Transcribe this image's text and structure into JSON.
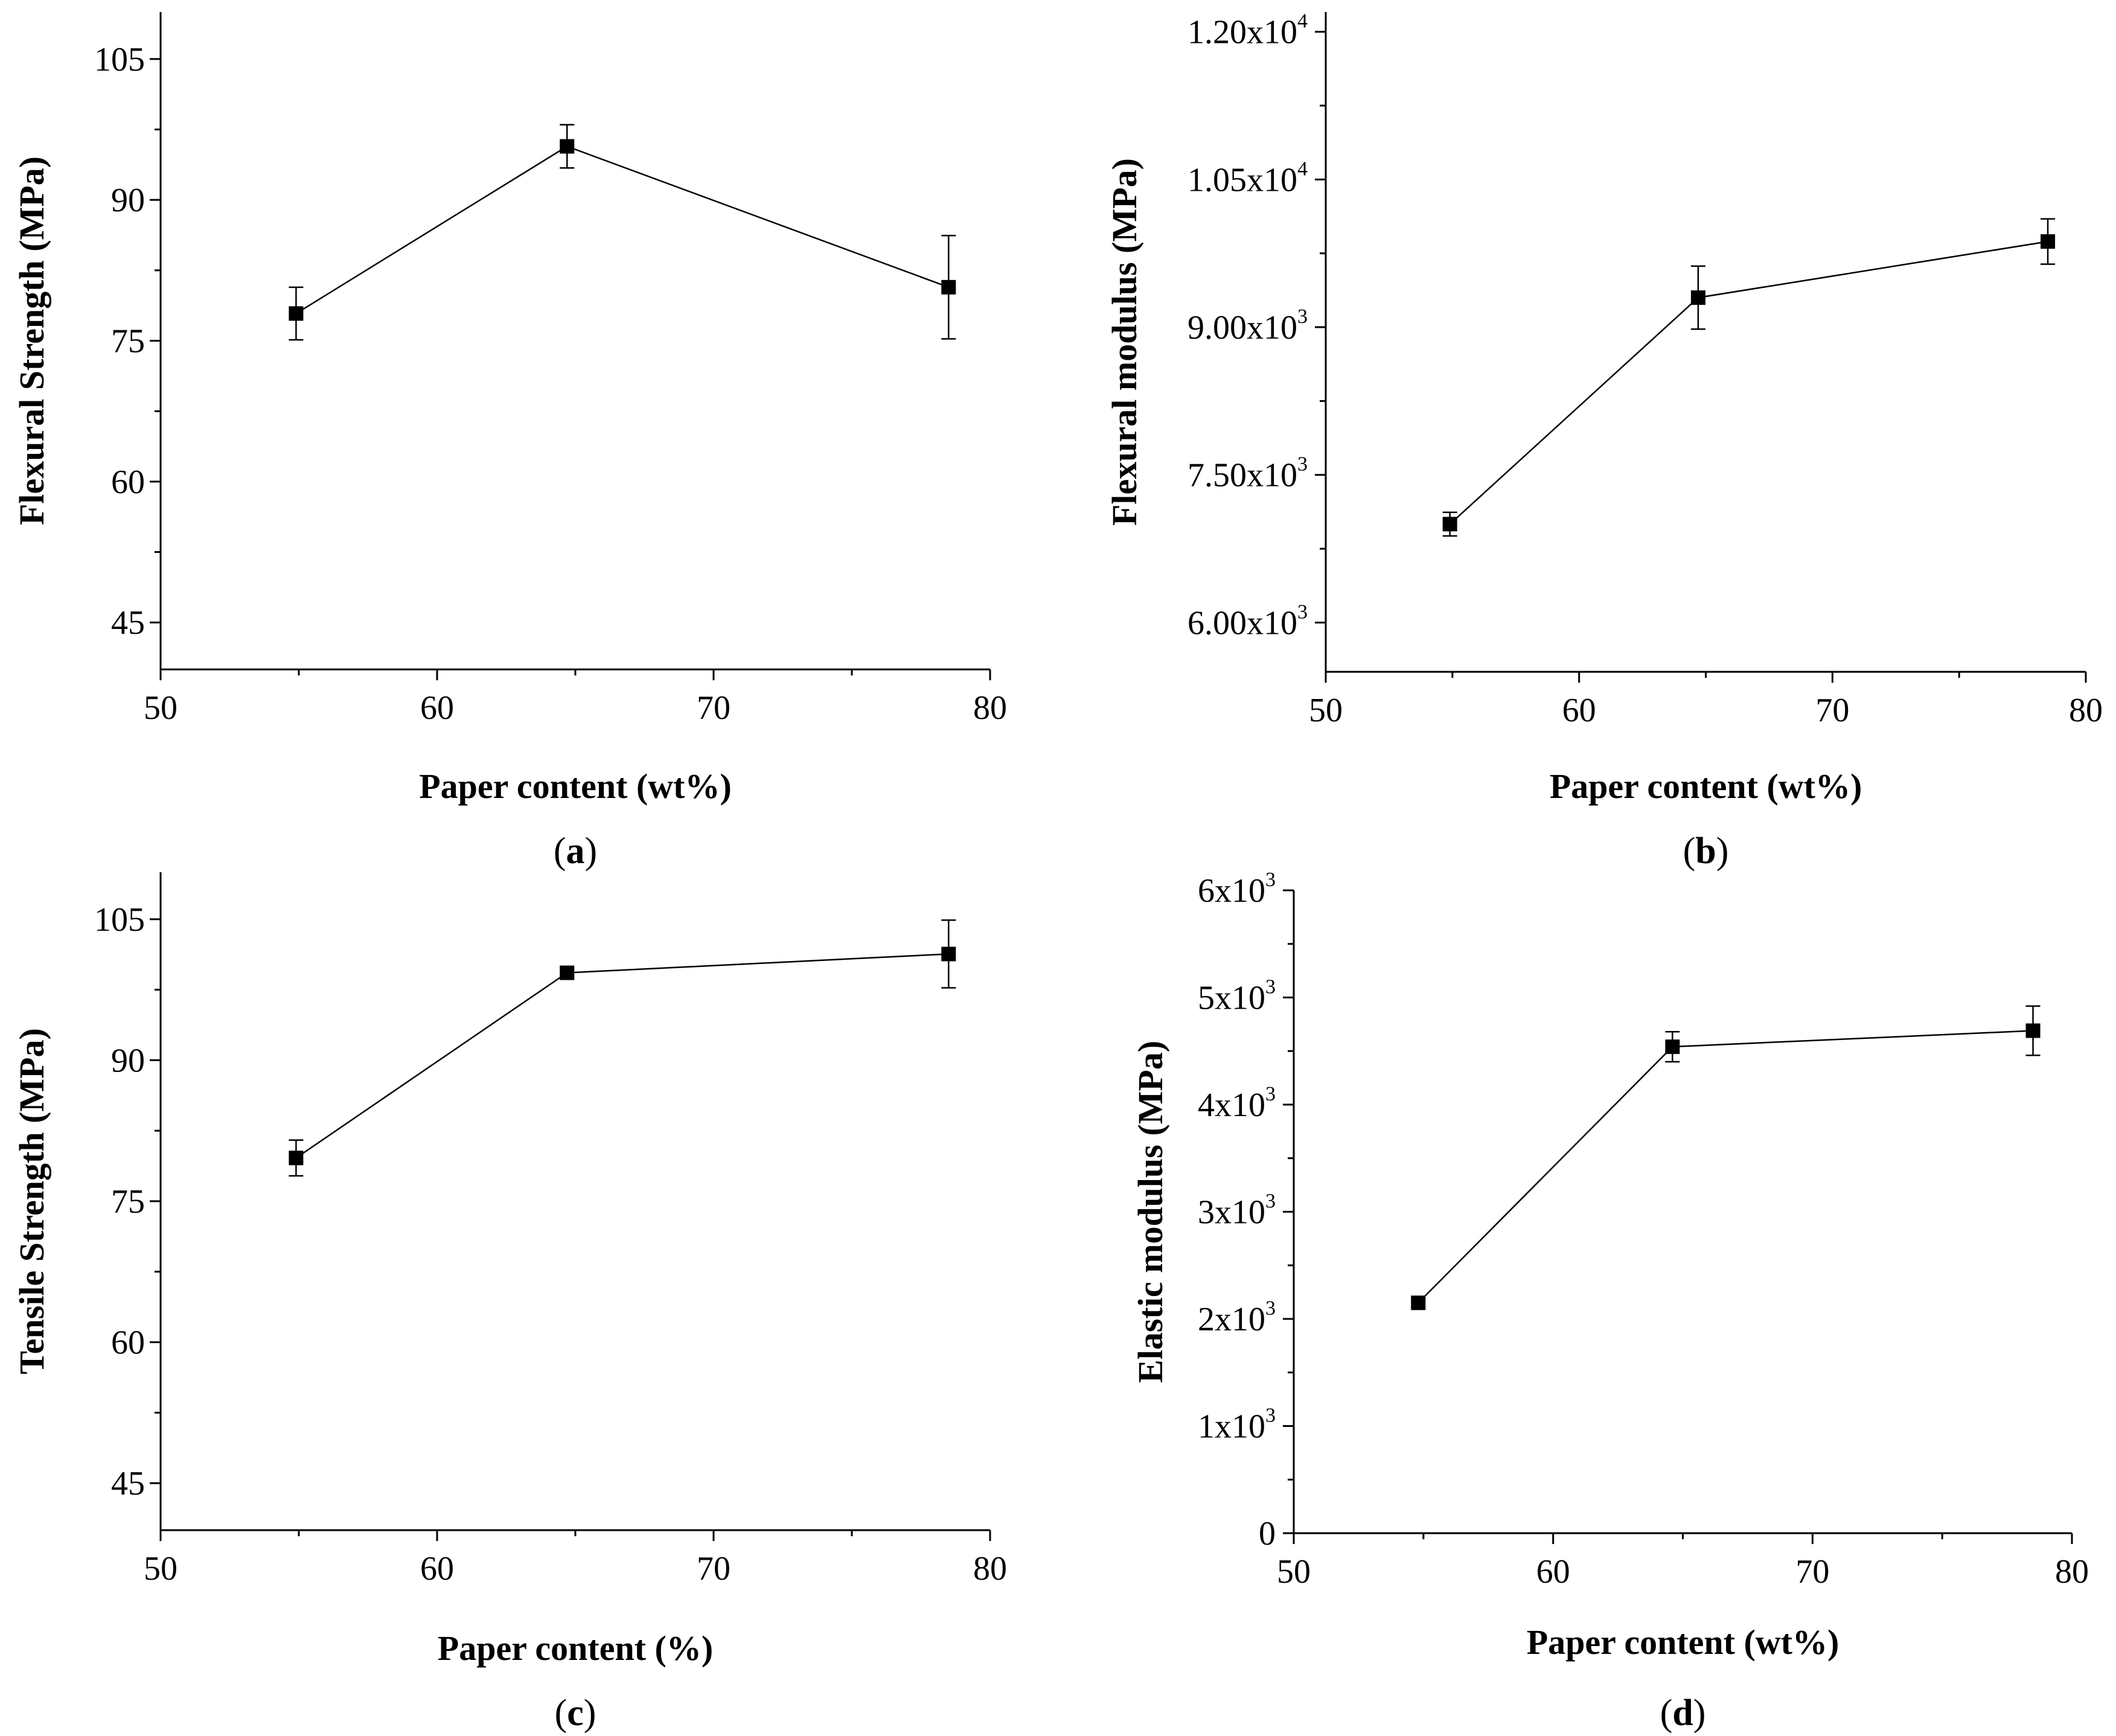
{
  "chart_data": [
    {
      "panel": "(a)",
      "type": "line",
      "xlabel": "Paper content (wt%)",
      "ylabel": "Flexural Strength (MPa)",
      "xlim": [
        50,
        80
      ],
      "ylim": [
        40,
        110
      ],
      "xticks": [
        50,
        60,
        70,
        80
      ],
      "xtick_labels": [
        "50",
        "60",
        "70",
        "80"
      ],
      "yticks": [
        45,
        60,
        75,
        90,
        105
      ],
      "ytick_labels": [
        {
          "base": "45",
          "sup": ""
        },
        {
          "base": "60",
          "sup": ""
        },
        {
          "base": "75",
          "sup": ""
        },
        {
          "base": "90",
          "sup": ""
        },
        {
          "base": "105",
          "sup": ""
        }
      ],
      "x": [
        54.9,
        64.7,
        78.5
      ],
      "values": [
        77.9,
        95.7,
        80.7
      ],
      "errors": [
        2.8,
        2.3,
        5.5
      ]
    },
    {
      "panel": "(b)",
      "type": "line",
      "xlabel": "Paper content (wt%)",
      "ylabel": "Flexural modulus (MPa)",
      "xlim": [
        50,
        80
      ],
      "ylim": [
        5500,
        12200
      ],
      "xticks": [
        50,
        60,
        70,
        80
      ],
      "xtick_labels": [
        "50",
        "60",
        "70",
        "80"
      ],
      "yticks": [
        6000,
        7500,
        9000,
        10500,
        12000
      ],
      "ytick_labels": [
        {
          "base": "6.00x10",
          "sup": "3"
        },
        {
          "base": "7.50x10",
          "sup": "3"
        },
        {
          "base": "9.00x10",
          "sup": "3"
        },
        {
          "base": "1.05x10",
          "sup": "4"
        },
        {
          "base": "1.20x10",
          "sup": "4"
        }
      ],
      "x": [
        54.9,
        64.7,
        78.5
      ],
      "values": [
        7000,
        9300,
        9870
      ],
      "errors": [
        120,
        320,
        230
      ]
    },
    {
      "panel": "(c)",
      "type": "line",
      "xlabel": "Paper content (%)",
      "ylabel": "Tensile Strength (MPa)",
      "xlim": [
        50,
        80
      ],
      "ylim": [
        40,
        110
      ],
      "xticks": [
        50,
        60,
        70,
        80
      ],
      "xtick_labels": [
        "50",
        "60",
        "70",
        "80"
      ],
      "yticks": [
        45,
        60,
        75,
        90,
        105
      ],
      "ytick_labels": [
        {
          "base": "45",
          "sup": ""
        },
        {
          "base": "60",
          "sup": ""
        },
        {
          "base": "75",
          "sup": ""
        },
        {
          "base": "90",
          "sup": ""
        },
        {
          "base": "105",
          "sup": ""
        }
      ],
      "x": [
        54.9,
        64.7,
        78.5
      ],
      "values": [
        79.6,
        99.3,
        101.3
      ],
      "errors": [
        1.9,
        0.5,
        3.6
      ]
    },
    {
      "panel": "(d)",
      "type": "line",
      "xlabel": "Paper content (wt%)",
      "ylabel": "Elastic modulus (MPa)",
      "xlim": [
        50,
        80
      ],
      "ylim": [
        0,
        6000
      ],
      "xticks": [
        50,
        60,
        70,
        80
      ],
      "xtick_labels": [
        "50",
        "60",
        "70",
        "80"
      ],
      "yticks": [
        0,
        1000,
        2000,
        3000,
        4000,
        5000,
        6000
      ],
      "ytick_labels": [
        {
          "base": "0",
          "sup": ""
        },
        {
          "base": "1x10",
          "sup": "3"
        },
        {
          "base": "2x10",
          "sup": "3"
        },
        {
          "base": "3x10",
          "sup": "3"
        },
        {
          "base": "4x10",
          "sup": "3"
        },
        {
          "base": "5x10",
          "sup": "3"
        },
        {
          "base": "6x10",
          "sup": "3"
        }
      ],
      "x": [
        54.8,
        64.6,
        78.5
      ],
      "values": [
        2150,
        4540,
        4690
      ],
      "errors": [
        40,
        140,
        230
      ]
    }
  ]
}
